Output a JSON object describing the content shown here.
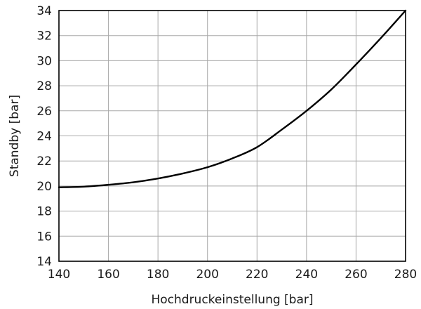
{
  "chart_data": {
    "type": "line",
    "xlabel": "Hochdruckeinstellung [bar]",
    "ylabel": "Standby [bar]",
    "xlim": [
      140,
      280
    ],
    "ylim": [
      14,
      34
    ],
    "xticks": [
      140,
      160,
      180,
      200,
      220,
      240,
      260,
      280
    ],
    "yticks": [
      14,
      16,
      18,
      20,
      22,
      24,
      26,
      28,
      30,
      32,
      34
    ],
    "grid": true,
    "legend": "none",
    "series": [
      {
        "color": "#000000",
        "x": [
          140,
          150,
          160,
          170,
          180,
          190,
          200,
          210,
          220,
          230,
          240,
          250,
          260,
          270,
          280
        ],
        "y": [
          19.9,
          19.95,
          20.1,
          20.3,
          20.6,
          21.0,
          21.5,
          22.2,
          23.1,
          24.5,
          26.0,
          27.7,
          29.7,
          31.8,
          34.0
        ]
      }
    ]
  }
}
